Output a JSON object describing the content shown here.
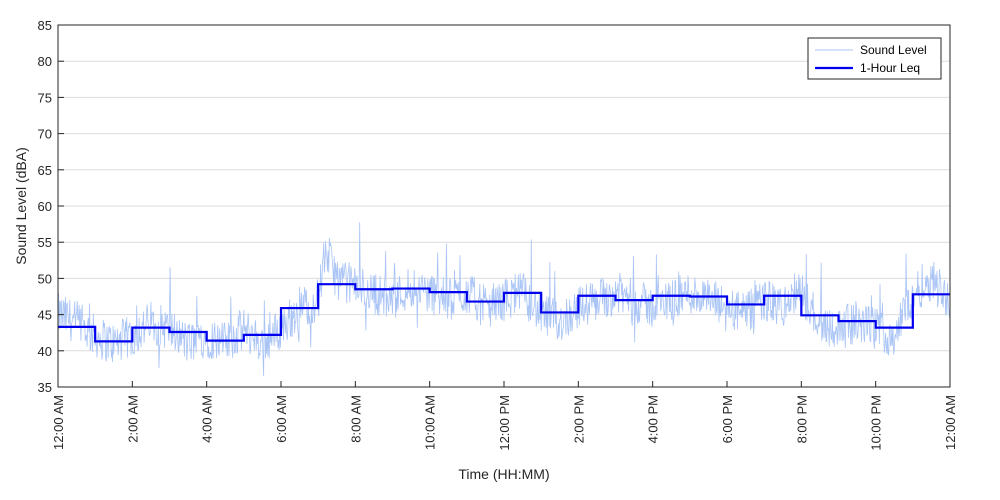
{
  "chart_data": {
    "type": "line",
    "title": "",
    "xlabel": "Time (HH:MM)",
    "ylabel": "Sound Level (dBA)",
    "ylim": [
      35,
      85
    ],
    "yticks": [
      35,
      40,
      45,
      50,
      55,
      60,
      65,
      70,
      75,
      80,
      85
    ],
    "xlim_hours": [
      0,
      24
    ],
    "xtick_hours": [
      0,
      2,
      4,
      6,
      8,
      10,
      12,
      14,
      16,
      18,
      20,
      22,
      24
    ],
    "xtick_labels": [
      "12:00 AM",
      "2:00 AM",
      "4:00 AM",
      "6:00 AM",
      "8:00 AM",
      "10:00 AM",
      "12:00 PM",
      "2:00 PM",
      "4:00 PM",
      "6:00 PM",
      "8:00 PM",
      "10:00 PM",
      "12:00 AM"
    ],
    "grid": true,
    "legend_position": "top-right",
    "series": [
      {
        "name": "Sound Level",
        "color": "#a9c4f5",
        "style": "thin line",
        "hours": [
          0,
          0.5,
          1,
          1.5,
          2,
          2.5,
          3,
          3.5,
          4,
          4.5,
          5,
          5.5,
          6,
          6.5,
          7,
          7.2,
          7.5,
          8,
          8.5,
          9,
          9.5,
          10,
          10.5,
          11,
          11.5,
          12,
          12.5,
          13,
          13.5,
          14,
          14.5,
          15,
          15.5,
          16,
          16.5,
          17,
          17.5,
          18,
          18.5,
          19,
          19.5,
          20,
          20.5,
          21,
          21.5,
          22,
          22.5,
          23,
          23.5,
          24
        ],
        "values": [
          45,
          44,
          42,
          41,
          42,
          44,
          43,
          41,
          42,
          41,
          43,
          41,
          43,
          46,
          47,
          54,
          50,
          49,
          48,
          47,
          49,
          48,
          47,
          48,
          46,
          47,
          48,
          45,
          44,
          46,
          47,
          48,
          47,
          46,
          47,
          48,
          47,
          46,
          45,
          47,
          46,
          48,
          44,
          43,
          44,
          43,
          42,
          48,
          50,
          47
        ]
      },
      {
        "name": "1-Hour Leq",
        "color": "#0000ee",
        "style": "step",
        "hour_start": [
          0,
          1,
          2,
          3,
          4,
          5,
          6,
          7,
          8,
          9,
          10,
          11,
          12,
          13,
          14,
          15,
          16,
          17,
          18,
          19,
          20,
          21,
          22,
          23
        ],
        "values": [
          43.3,
          41.3,
          43.2,
          42.6,
          41.4,
          42.2,
          45.9,
          49.2,
          48.5,
          48.6,
          48.1,
          46.8,
          48.0,
          45.3,
          47.6,
          47.0,
          47.6,
          47.5,
          46.4,
          47.6,
          44.9,
          44.1,
          43.2,
          47.8
        ]
      }
    ]
  }
}
